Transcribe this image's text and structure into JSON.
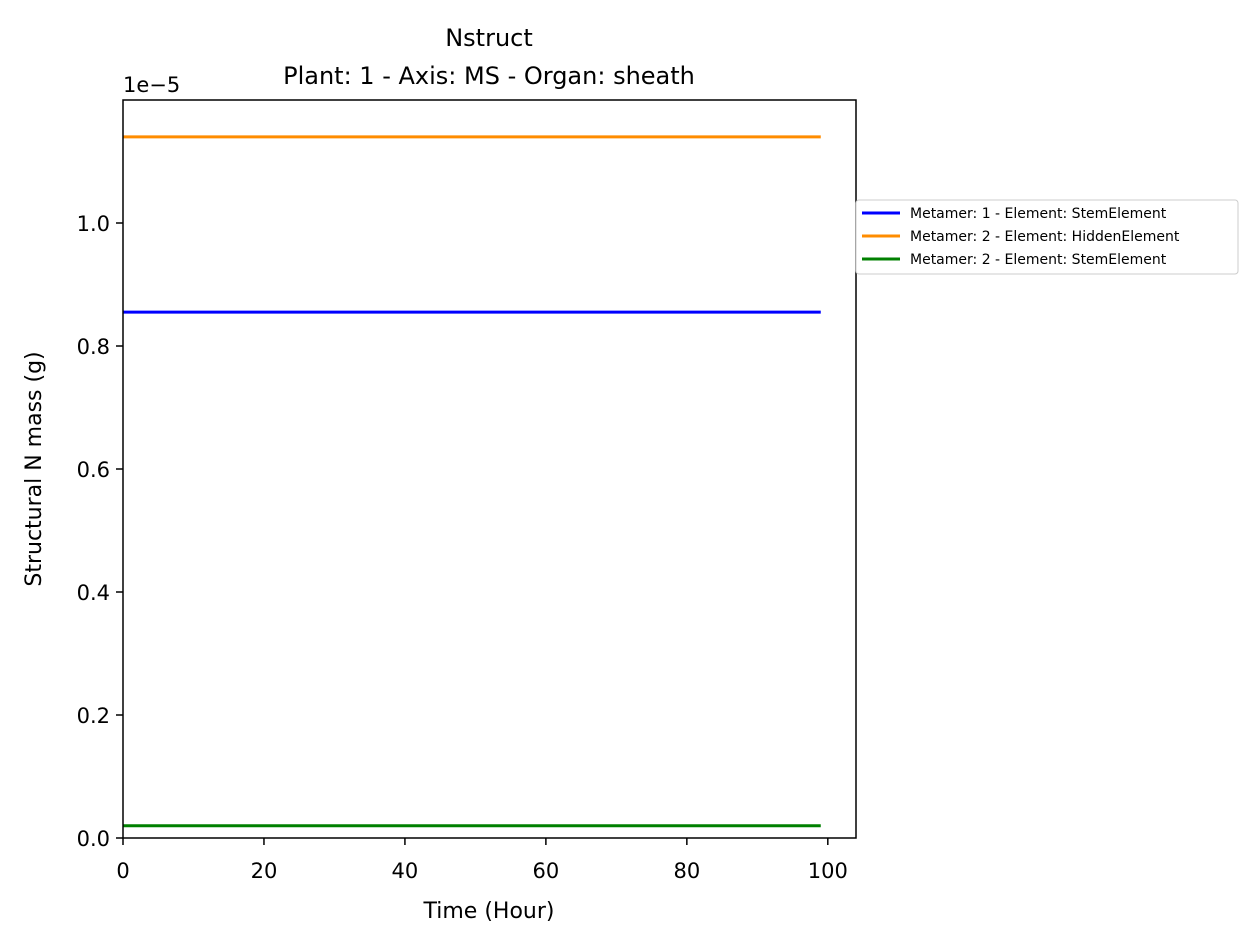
{
  "chart_data": {
    "type": "line",
    "title": "Nstruct",
    "subtitle": "Plant: 1 - Axis: MS - Organ: sheath",
    "xlabel": "Time (Hour)",
    "ylabel": "Structural N mass (g)",
    "y_offset_label": "1e−5",
    "xlim": [
      0,
      104
    ],
    "ylim": [
      0,
      12
    ],
    "x_ticks": [
      0,
      20,
      40,
      60,
      80,
      100
    ],
    "x_tick_labels": [
      "0",
      "20",
      "40",
      "60",
      "80",
      "100"
    ],
    "y_ticks": [
      0,
      2,
      4,
      6,
      8,
      10
    ],
    "y_tick_labels": [
      "0.0",
      "0.2",
      "0.4",
      "0.6",
      "0.8",
      "1.0"
    ],
    "grid": false,
    "legend_position": "outside right",
    "x": [
      0,
      99
    ],
    "series": [
      {
        "name": "Metamer: 1 - Element: StemElement",
        "color": "#0000ff",
        "values": [
          8.55,
          8.55
        ]
      },
      {
        "name": "Metamer: 2 - Element: HiddenElement",
        "color": "#ff8c00",
        "values": [
          11.4,
          11.4
        ]
      },
      {
        "name": "Metamer: 2 - Element: StemElement",
        "color": "#008000",
        "values": [
          0.2,
          0.2
        ]
      }
    ]
  }
}
